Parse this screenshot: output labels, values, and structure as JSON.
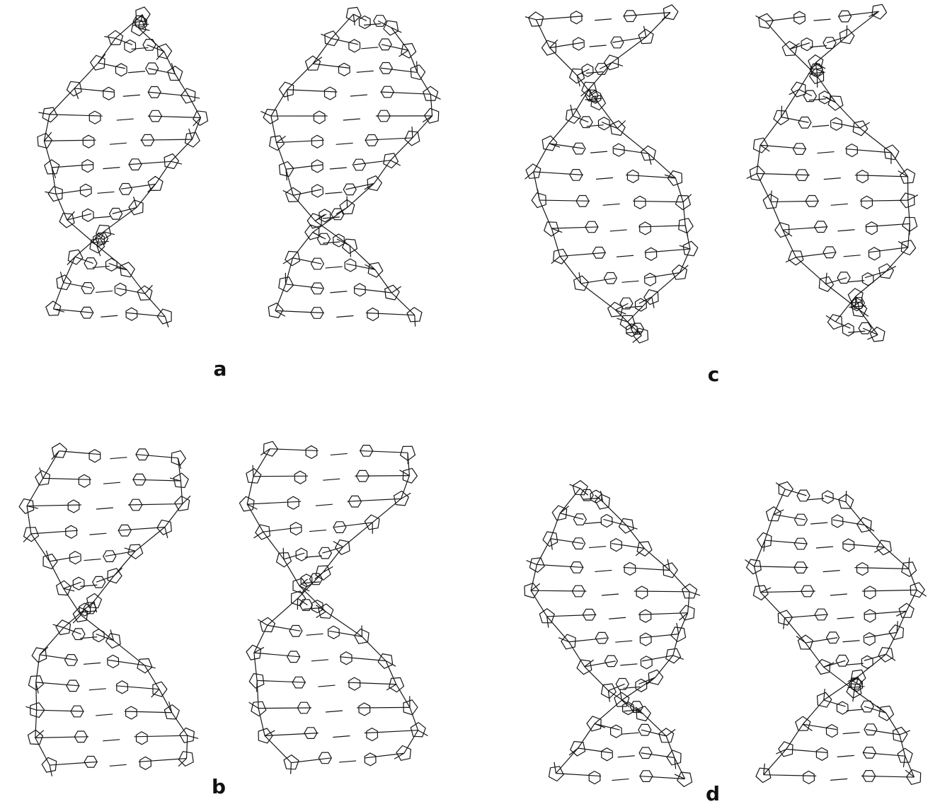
{
  "panels": [
    {
      "label": "a"
    },
    {
      "label": "b"
    },
    {
      "label": "c"
    },
    {
      "label": "d"
    }
  ]
}
